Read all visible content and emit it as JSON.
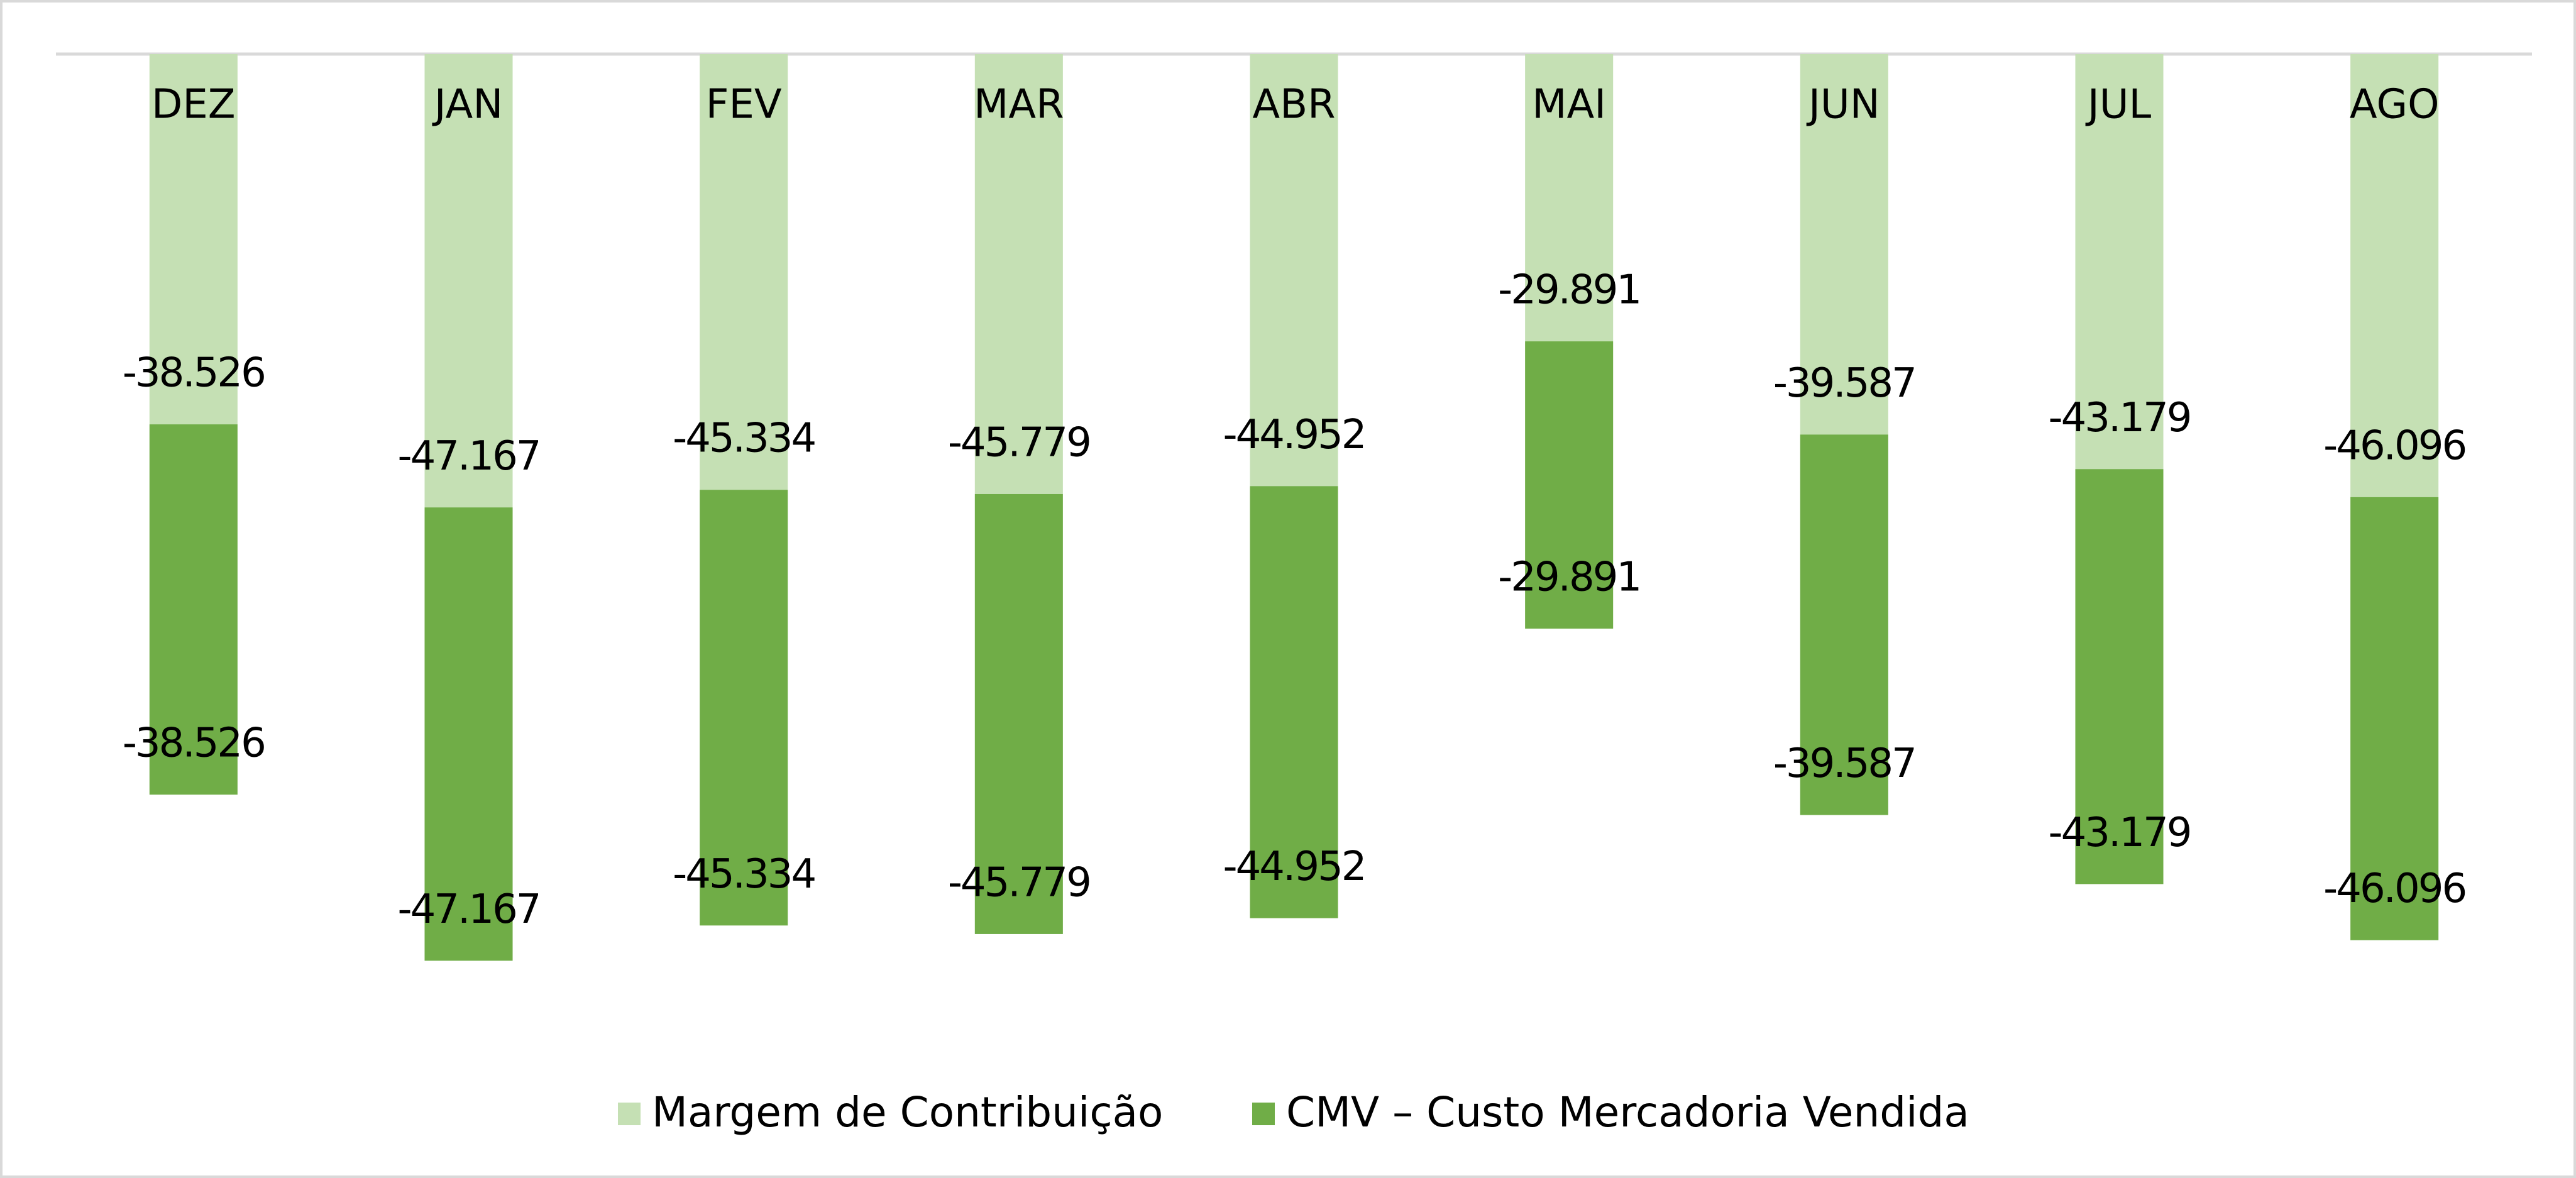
{
  "chart_data": {
    "type": "stacked_bar",
    "categories": [
      "DEZ",
      "JAN",
      "FEV",
      "MAR",
      "ABR",
      "MAI",
      "JUN",
      "JUL",
      "AGO"
    ],
    "series": [
      {
        "name": "Margem de Contribuição",
        "color": "#c5e0b4",
        "values": [
          -38526,
          -47167,
          -45334,
          -45779,
          -44952,
          -29891,
          -39587,
          -43179,
          -46096
        ],
        "value_labels": [
          "-38.526",
          "-47.167",
          "-45.334",
          "-45.779",
          "-44.952",
          "-29.891",
          "-39.587",
          "-43.179",
          "-46.096"
        ]
      },
      {
        "name": "CMV – Custo Mercadoria Vendida",
        "color": "#70ad47",
        "values": [
          -38526,
          -47167,
          -45334,
          -45779,
          -44952,
          -29891,
          -39587,
          -43179,
          -46096
        ],
        "value_labels": [
          "-38.526",
          "-47.167",
          "-45.334",
          "-45.779",
          "-44.952",
          "-29.891",
          "-39.587",
          "-43.179",
          "-46.096"
        ]
      }
    ],
    "ylim": [
      -100000,
      0
    ],
    "legend": "bottom"
  }
}
